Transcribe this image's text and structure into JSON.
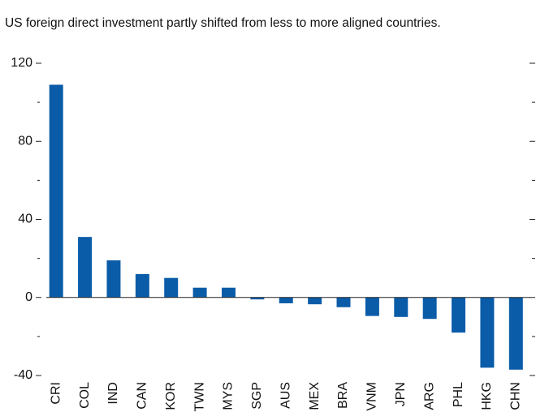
{
  "chart_data": {
    "type": "bar",
    "title": "US foreign direct investment partly shifted from less to more aligned countries.",
    "categories": [
      "CRI",
      "COL",
      "IND",
      "CAN",
      "KOR",
      "TWN",
      "MYS",
      "SGP",
      "AUS",
      "MEX",
      "BRA",
      "VNM",
      "JPN",
      "ARG",
      "PHL",
      "HKG",
      "CHN"
    ],
    "values": [
      109,
      31,
      19,
      12,
      10,
      5,
      5,
      -1,
      -3,
      -3.5,
      -5,
      -9.5,
      -10,
      -11,
      -18,
      -36,
      -37
    ],
    "color": "#0a5ca8",
    "ylim": [
      -40,
      120
    ],
    "yticks": [
      -40,
      0,
      40,
      80,
      120
    ],
    "minor_yticks": [
      -20,
      20,
      60,
      100
    ]
  }
}
